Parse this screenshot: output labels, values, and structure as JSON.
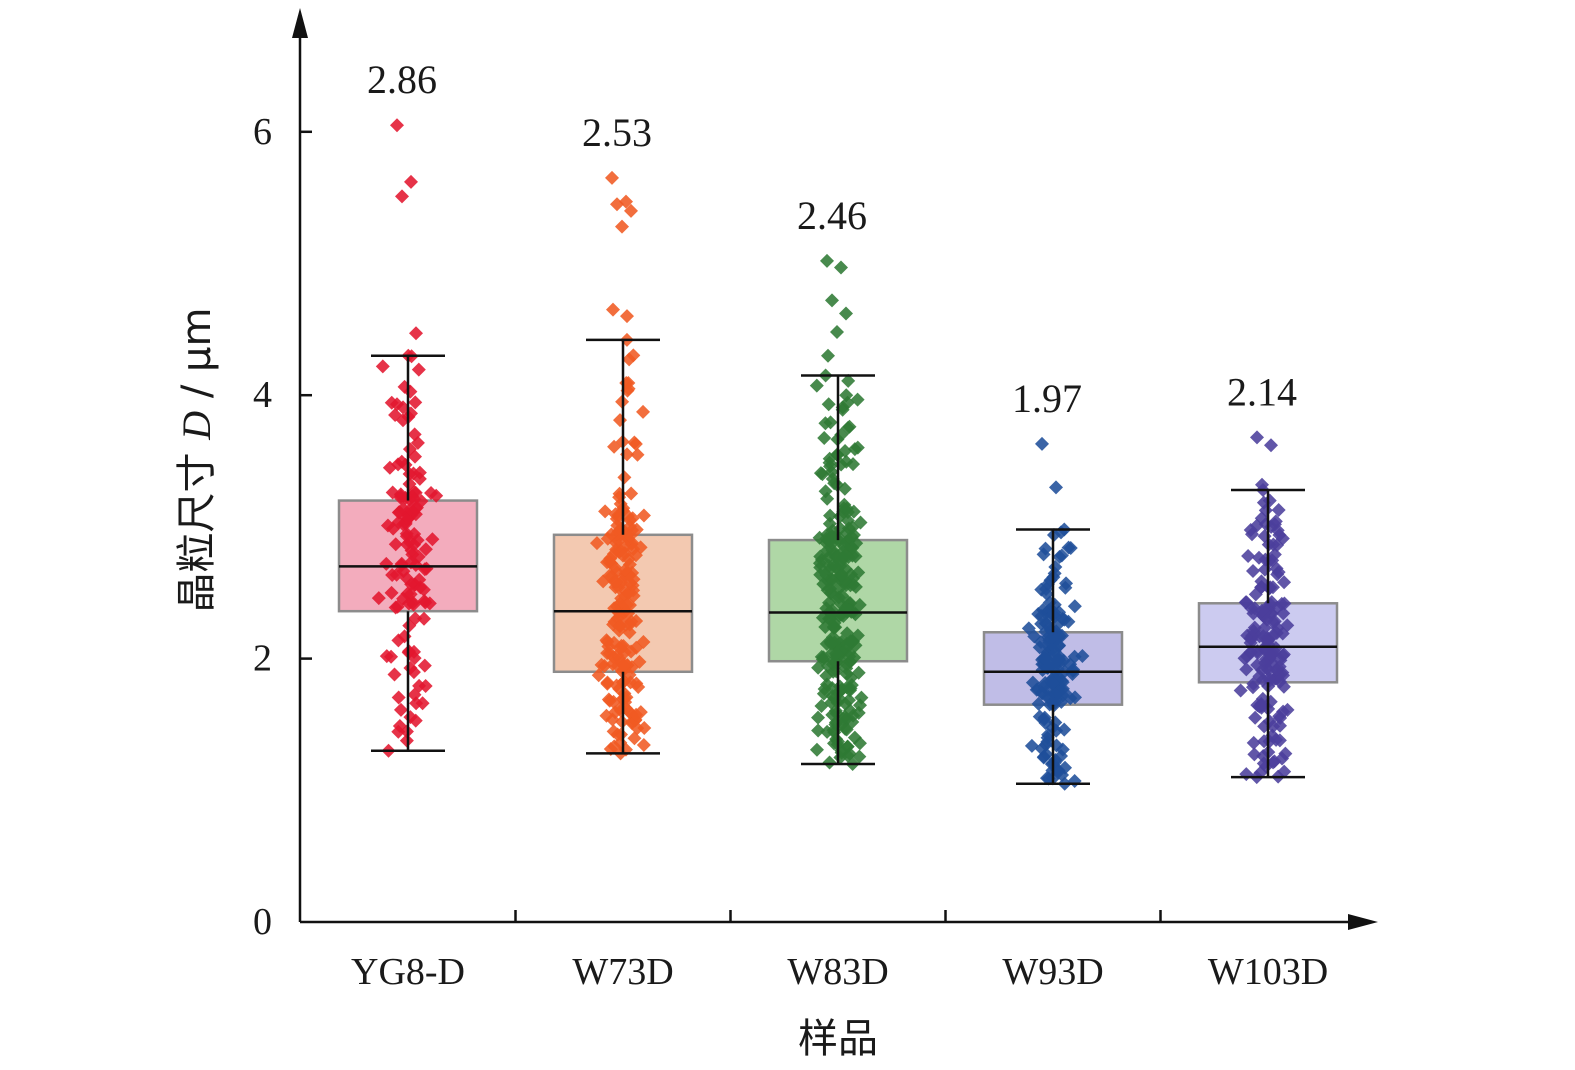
{
  "chart_data": {
    "type": "box",
    "title": "",
    "xlabel": "样品",
    "ylabel": {
      "prefix": "晶粒尺寸 ",
      "symbol": "D",
      "suffix": " / μm"
    },
    "ylim": [
      0,
      6.8
    ],
    "yticks": [
      0,
      2,
      4,
      6
    ],
    "ytick_labels": [
      "0",
      "2",
      "4",
      "6"
    ],
    "grid": false,
    "legend": "none",
    "categories": [
      "YG8-D",
      "W73D",
      "W83D",
      "W93D",
      "W103D"
    ],
    "mean_labels": [
      "2.86",
      "2.53",
      "2.46",
      "1.97",
      "2.14"
    ],
    "series": [
      {
        "category": "YG8-D",
        "color": "#e3172f",
        "box_fill": "#f2a3b6",
        "q1": 2.36,
        "median": 2.7,
        "q3": 3.2,
        "whisker_low": 1.3,
        "whisker_high": 4.3,
        "count": 130,
        "outliers": [
          6.05,
          5.62,
          5.51,
          4.47
        ]
      },
      {
        "category": "W73D",
        "color": "#f05a22",
        "box_fill": "#f2c3a8",
        "q1": 1.9,
        "median": 2.36,
        "q3": 2.94,
        "whisker_low": 1.28,
        "whisker_high": 4.42,
        "count": 190,
        "outliers": [
          5.65,
          5.47,
          5.45,
          5.4,
          5.28,
          4.65,
          4.6
        ]
      },
      {
        "category": "W83D",
        "color": "#2f7a34",
        "box_fill": "#a6d39c",
        "q1": 1.98,
        "median": 2.35,
        "q3": 2.9,
        "whisker_low": 1.2,
        "whisker_high": 4.15,
        "count": 260,
        "outliers": [
          5.02,
          4.97,
          4.72,
          4.62,
          4.48,
          4.3
        ]
      },
      {
        "category": "W93D",
        "color": "#1f4e9a",
        "box_fill": "#b9b6e4",
        "q1": 1.65,
        "median": 1.9,
        "q3": 2.2,
        "whisker_low": 1.05,
        "whisker_high": 2.98,
        "count": 170,
        "outliers": [
          3.63,
          3.3
        ]
      },
      {
        "category": "W103D",
        "color": "#4b3f9c",
        "box_fill": "#c7c5ee",
        "q1": 1.82,
        "median": 2.09,
        "q3": 2.42,
        "whisker_low": 1.1,
        "whisker_high": 3.28,
        "count": 170,
        "outliers": [
          3.68,
          3.62,
          3.32
        ]
      }
    ]
  }
}
